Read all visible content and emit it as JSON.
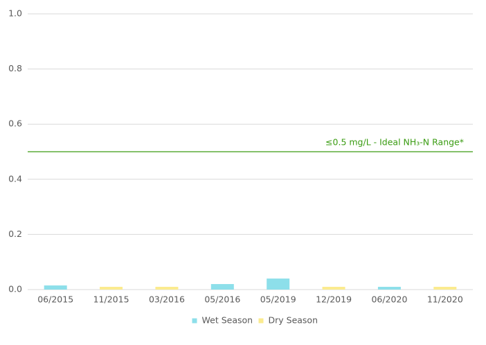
{
  "chart_data": {
    "type": "bar",
    "categories": [
      "06/2015",
      "11/2015",
      "03/2016",
      "05/2016",
      "05/2019",
      "12/2019",
      "06/2020",
      "11/2020"
    ],
    "series": [
      {
        "name": "Wet Season",
        "color": "#8ddfea",
        "values": [
          0.015,
          null,
          null,
          0.02,
          0.04,
          null,
          0.01,
          null
        ]
      },
      {
        "name": "Dry Season",
        "color": "#fbeb8f",
        "values": [
          null,
          0.01,
          0.01,
          null,
          null,
          0.01,
          null,
          0.01
        ]
      }
    ],
    "ylim": [
      0,
      1
    ],
    "yticks": [
      {
        "value": 0,
        "label": "0.0"
      },
      0.2,
      0.4,
      0.6,
      0.8,
      {
        "value": 1,
        "label": "1.0"
      }
    ],
    "grid": true,
    "reference_line": {
      "value": 0.5,
      "label": "≤0.5 mg/L - Ideal NH₃-N Range*",
      "color": "#3a9c12"
    },
    "legend": "bottom"
  }
}
